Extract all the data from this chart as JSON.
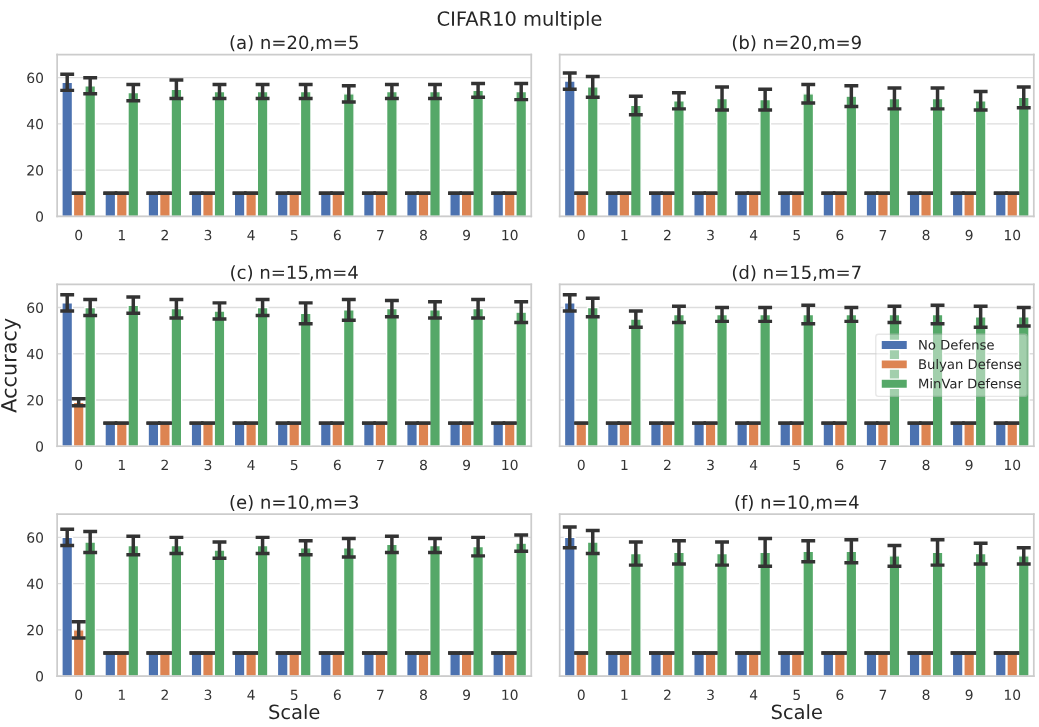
{
  "chart_data": [
    {
      "type": "bar",
      "title": "(a) n=20,m=5",
      "annotations": [
        "CIFAR10 multiple"
      ],
      "categories": [
        "0",
        "1",
        "2",
        "3",
        "4",
        "5",
        "6",
        "7",
        "8",
        "9",
        "10"
      ],
      "ylim": [
        0,
        70
      ],
      "yticks": [
        0,
        20,
        40,
        60
      ],
      "grid": "y",
      "series": [
        {
          "color": "#4c72b0",
          "values": [
            58,
            10,
            10,
            10,
            10,
            10,
            10,
            10,
            10,
            10,
            10
          ],
          "errors": [
            3.5,
            0,
            0,
            0,
            0,
            0,
            0,
            0,
            0,
            0,
            0
          ]
        },
        {
          "color": "#dd8452",
          "values": [
            10,
            10,
            10,
            10,
            10,
            10,
            10,
            10,
            10,
            10,
            10
          ],
          "errors": [
            0,
            0,
            0,
            0,
            0,
            0,
            0,
            0,
            0,
            0,
            0
          ]
        },
        {
          "color": "#55a868",
          "values": [
            56.5,
            53.5,
            55,
            54,
            54,
            54,
            53,
            54,
            54,
            54.5,
            54
          ],
          "errors": [
            3.5,
            3.5,
            4,
            3,
            3,
            3,
            3.5,
            3,
            3,
            3,
            3.5
          ]
        }
      ]
    },
    {
      "type": "bar",
      "title": "(b) n=20,m=9",
      "categories": [
        "0",
        "1",
        "2",
        "3",
        "4",
        "5",
        "6",
        "7",
        "8",
        "9",
        "10"
      ],
      "ylim": [
        0,
        70
      ],
      "yticks": [
        0,
        20,
        40,
        60
      ],
      "grid": "y",
      "tick_labels": "x",
      "series": [
        {
          "color": "#4c72b0",
          "values": [
            58.5,
            10,
            10,
            10,
            10,
            10,
            10,
            10,
            10,
            10,
            10
          ],
          "errors": [
            3.5,
            0,
            0,
            0,
            0,
            0,
            0,
            0,
            0,
            0,
            0
          ]
        },
        {
          "color": "#dd8452",
          "values": [
            10,
            10,
            10,
            10,
            10,
            10,
            10,
            10,
            10,
            10,
            10
          ],
          "errors": [
            0,
            0,
            0,
            0,
            0,
            0,
            0,
            0,
            0,
            0,
            0
          ]
        },
        {
          "color": "#55a868",
          "values": [
            56,
            48,
            50,
            51,
            50.5,
            53,
            52,
            51,
            51,
            50,
            51.5
          ],
          "errors": [
            4.5,
            4,
            3.5,
            5,
            4.5,
            4,
            4.5,
            4.5,
            4.5,
            4,
            4.5
          ]
        }
      ]
    },
    {
      "type": "bar",
      "title": "(c) n=15,m=4",
      "ylabel": "Accuracy",
      "categories": [
        "0",
        "1",
        "2",
        "3",
        "4",
        "5",
        "6",
        "7",
        "8",
        "9",
        "10"
      ],
      "ylim": [
        0,
        70
      ],
      "yticks": [
        0,
        20,
        40,
        60
      ],
      "grid": "y",
      "series": [
        {
          "color": "#4c72b0",
          "values": [
            62,
            10,
            10,
            10,
            10,
            10,
            10,
            10,
            10,
            10,
            10
          ],
          "errors": [
            3.5,
            0,
            0,
            0,
            0,
            0,
            0,
            0,
            0,
            0,
            0
          ]
        },
        {
          "color": "#dd8452",
          "values": [
            19,
            10,
            10,
            10,
            10,
            10,
            10,
            10,
            10,
            10,
            10
          ],
          "errors": [
            1.5,
            0,
            0,
            0,
            0,
            0,
            0,
            0,
            0,
            0,
            0
          ]
        },
        {
          "color": "#55a868",
          "values": [
            60,
            61,
            59.5,
            58.5,
            60,
            57.5,
            59,
            59.5,
            59,
            59.5,
            58
          ],
          "errors": [
            3.5,
            3.5,
            4,
            3.5,
            3.5,
            4.5,
            4.5,
            3.5,
            3.5,
            4,
            4.5
          ]
        }
      ]
    },
    {
      "type": "bar",
      "title": "(d) n=15,m=7",
      "categories": [
        "0",
        "1",
        "2",
        "3",
        "4",
        "5",
        "6",
        "7",
        "8",
        "9",
        "10"
      ],
      "ylim": [
        0,
        70
      ],
      "yticks": [
        0,
        20,
        40,
        60
      ],
      "grid": "y",
      "legend": "center right",
      "tick_labels": "x",
      "series": [
        {
          "name": "No Defense",
          "color": "#4c72b0",
          "values": [
            62,
            10,
            10,
            10,
            10,
            10,
            10,
            10,
            10,
            10,
            10
          ],
          "errors": [
            3.5,
            0,
            0,
            0,
            0,
            0,
            0,
            0,
            0,
            0,
            0
          ]
        },
        {
          "name": "Bulyan Defense",
          "color": "#dd8452",
          "values": [
            10,
            10,
            10,
            10,
            10,
            10,
            10,
            10,
            10,
            10,
            10
          ],
          "errors": [
            0,
            0,
            0,
            0,
            0,
            0,
            0,
            0,
            0,
            0,
            0
          ]
        },
        {
          "name": "MinVar Defense",
          "color": "#55a868",
          "values": [
            60,
            55,
            57,
            57,
            57,
            57,
            57,
            57,
            57,
            56,
            56
          ],
          "errors": [
            4,
            3.5,
            3.5,
            3,
            3,
            4,
            3,
            3.5,
            4,
            4.5,
            4
          ]
        }
      ]
    },
    {
      "type": "bar",
      "title": "(e) n=10,m=3",
      "xlabel": "Scale",
      "categories": [
        "0",
        "1",
        "2",
        "3",
        "4",
        "5",
        "6",
        "7",
        "8",
        "9",
        "10"
      ],
      "ylim": [
        0,
        70
      ],
      "yticks": [
        0,
        20,
        40,
        60
      ],
      "grid": "y",
      "series": [
        {
          "color": "#4c72b0",
          "values": [
            60,
            10,
            10,
            10,
            10,
            10,
            10,
            10,
            10,
            10,
            10
          ],
          "errors": [
            3.5,
            0,
            0,
            0,
            0,
            0,
            0,
            0,
            0,
            0,
            0
          ]
        },
        {
          "color": "#dd8452",
          "values": [
            20,
            10,
            10,
            10,
            10,
            10,
            10,
            10,
            10,
            10,
            10
          ],
          "errors": [
            3.5,
            0,
            0,
            0,
            0,
            0,
            0,
            0,
            0,
            0,
            0
          ]
        },
        {
          "color": "#55a868",
          "values": [
            58,
            56.5,
            56.5,
            54.5,
            56.5,
            55.5,
            55.5,
            57,
            56.5,
            56,
            57.5
          ],
          "errors": [
            4.5,
            4,
            3.5,
            3.5,
            3.5,
            3,
            4,
            3.5,
            3,
            4,
            3.5
          ]
        }
      ]
    },
    {
      "type": "bar",
      "title": "(f) n=10,m=4",
      "xlabel": "Scale",
      "categories": [
        "0",
        "1",
        "2",
        "3",
        "4",
        "5",
        "6",
        "7",
        "8",
        "9",
        "10"
      ],
      "ylim": [
        0,
        70
      ],
      "yticks": [
        0,
        20,
        40,
        60
      ],
      "grid": "y",
      "tick_labels": "x",
      "series": [
        {
          "color": "#4c72b0",
          "values": [
            60,
            10,
            10,
            10,
            10,
            10,
            10,
            10,
            10,
            10,
            10
          ],
          "errors": [
            4.5,
            0,
            0,
            0,
            0,
            0,
            0,
            0,
            0,
            0,
            0
          ]
        },
        {
          "color": "#dd8452",
          "values": [
            10,
            10,
            10,
            10,
            10,
            10,
            10,
            10,
            10,
            10,
            10
          ],
          "errors": [
            0,
            0,
            0,
            0,
            0,
            0,
            0,
            0,
            0,
            0,
            0
          ]
        },
        {
          "color": "#55a868",
          "values": [
            58,
            53,
            53.5,
            53,
            53.5,
            54,
            54,
            52,
            53.5,
            53,
            52
          ],
          "errors": [
            5,
            5,
            5,
            5,
            6,
            4.5,
            5,
            4.5,
            5.5,
            4.5,
            3.5
          ]
        }
      ]
    }
  ]
}
